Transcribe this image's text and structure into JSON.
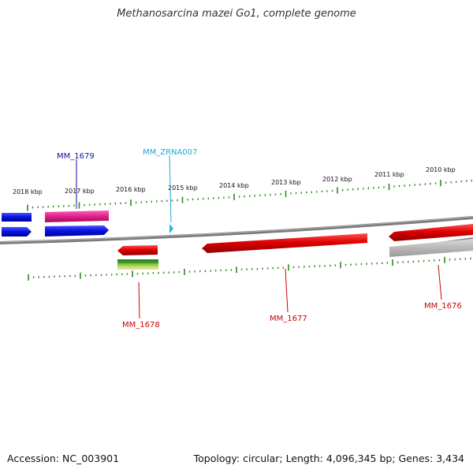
{
  "title": "Methanosarcina mazei Go1, complete genome",
  "footer": {
    "accession": "Accession: NC_003901",
    "summary": "Topology: circular; Length: 4,096,345 bp; Genes: 3,434"
  },
  "colors": {
    "backbone": "#808080",
    "ticks": "#2e8b1f",
    "cds_forward_blue": "#0a14e6",
    "cds_reverse_red": "#e00000",
    "rna_pink": "#e0208a",
    "ncrna_cyan": "#20b8d8",
    "pseudo_gray": "#b8b8b8",
    "label_blue": "#1010a0",
    "label_cyan": "#20a8d0",
    "label_red": "#cc0000"
  },
  "scale": {
    "tick_labels": [
      "2018 kbp",
      "2017 kbp",
      "2016 kbp",
      "2015 kbp",
      "2014 kbp",
      "2013 kbp",
      "2012 kbp",
      "2011 kbp",
      "2010 kbp"
    ]
  },
  "gene_labels": {
    "mm1679": "MM_1679",
    "zrna007": "MM_ZRNA007",
    "mm1678": "MM_1678",
    "mm1677": "MM_1677",
    "mm1676": "MM_1676"
  }
}
